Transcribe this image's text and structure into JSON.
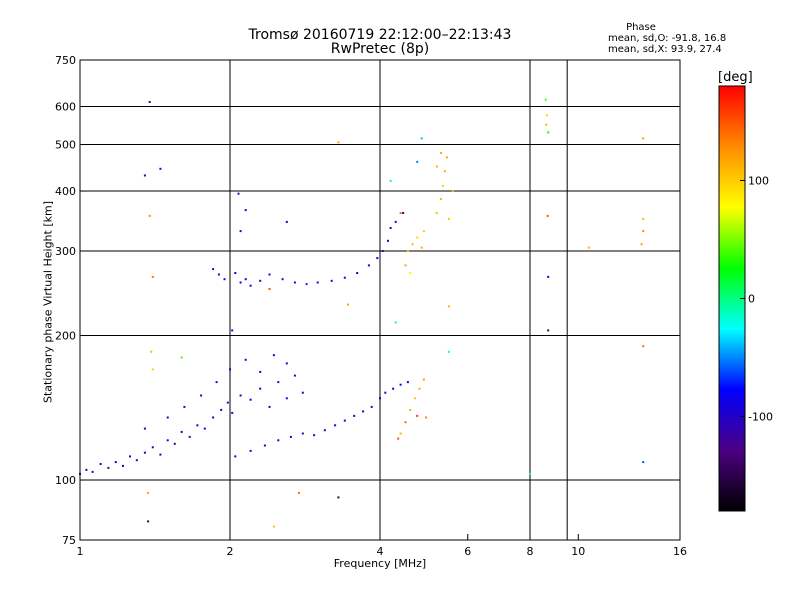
{
  "header": {
    "title_line1": "Tromsø 20160719 22:12:00–22:13:43",
    "title_line2": "RwPretec (8p)"
  },
  "phase_box": {
    "title": "Phase",
    "o_line": "mean, sd,O: -91.8, 16.8",
    "x_line": "mean, sd,X:  93.9, 27.4"
  },
  "colorbar": {
    "label": "[deg]",
    "range": [
      -180,
      180
    ],
    "ticks": [
      100,
      0,
      -100
    ],
    "colors": [
      "#000000",
      "#4b0082",
      "#0000ff",
      "#00ffff",
      "#00ff00",
      "#ffff00",
      "#ff8c00",
      "#ff0000"
    ]
  },
  "chart_data": {
    "type": "scatter",
    "xlabel": "Frequency [MHz]",
    "ylabel": "Stationary phase Virtual Height [km]",
    "x_scale": "log",
    "y_scale": "log",
    "xlim": [
      1,
      16
    ],
    "ylim": [
      75,
      750
    ],
    "x_ticks": [
      1,
      2,
      4,
      6,
      8,
      10,
      16
    ],
    "y_ticks": [
      75,
      100,
      200,
      300,
      400,
      500,
      600,
      750
    ],
    "x_grid": [
      1,
      2,
      4,
      8,
      9.5,
      16
    ],
    "y_grid": [
      100,
      200,
      300,
      400,
      500,
      600,
      750
    ],
    "grid": true,
    "point_fields": [
      "x_MHz",
      "height_km",
      "phase_deg"
    ],
    "series": [
      {
        "points": [
          [
            1.0,
            103,
            -100
          ],
          [
            1.03,
            105,
            -95
          ],
          [
            1.06,
            104,
            -105
          ],
          [
            1.1,
            108,
            -92
          ],
          [
            1.14,
            106,
            -110
          ],
          [
            1.18,
            109,
            -98
          ],
          [
            1.22,
            107,
            -102
          ],
          [
            1.26,
            112,
            -90
          ],
          [
            1.3,
            110,
            -104
          ],
          [
            1.35,
            114,
            -96
          ],
          [
            1.4,
            117,
            -112
          ],
          [
            1.45,
            113,
            -100
          ],
          [
            1.5,
            121,
            -94
          ],
          [
            1.55,
            119,
            -106
          ],
          [
            1.6,
            126,
            -92
          ],
          [
            1.66,
            123,
            -108
          ],
          [
            1.72,
            130,
            -98
          ],
          [
            1.78,
            128,
            -88
          ],
          [
            1.85,
            135,
            -102
          ],
          [
            1.92,
            140,
            -94
          ],
          [
            1.98,
            145,
            -110
          ],
          [
            2.02,
            138,
            -90
          ],
          [
            2.1,
            150,
            -100
          ],
          [
            2.2,
            147,
            -86
          ],
          [
            2.3,
            155,
            -104
          ],
          [
            2.4,
            142,
            -92
          ],
          [
            2.5,
            160,
            -98
          ],
          [
            2.6,
            148,
            -80
          ],
          [
            2.7,
            165,
            -106
          ],
          [
            2.8,
            152,
            -95
          ],
          [
            1.35,
            128,
            -100
          ],
          [
            1.5,
            135,
            -92
          ],
          [
            1.62,
            142,
            -104
          ],
          [
            1.75,
            150,
            -98
          ],
          [
            1.88,
            160,
            -110
          ],
          [
            2.0,
            170,
            -94
          ],
          [
            2.15,
            178,
            -102
          ],
          [
            2.3,
            168,
            -88
          ],
          [
            2.45,
            182,
            -100
          ],
          [
            2.6,
            175,
            -96
          ],
          [
            2.05,
            112,
            -104
          ],
          [
            2.2,
            115,
            -92
          ],
          [
            2.35,
            118,
            -98
          ],
          [
            2.5,
            121,
            -106
          ],
          [
            2.65,
            123,
            -90
          ],
          [
            2.8,
            125,
            -100
          ],
          [
            2.95,
            124,
            -94
          ],
          [
            3.1,
            127,
            -108
          ],
          [
            3.25,
            130,
            -98
          ],
          [
            3.4,
            133,
            -92
          ],
          [
            3.55,
            136,
            -104
          ],
          [
            3.7,
            139,
            -96
          ],
          [
            3.85,
            142,
            -110
          ],
          [
            4.0,
            148,
            -94
          ],
          [
            4.1,
            152,
            -102
          ],
          [
            4.25,
            155,
            -98
          ],
          [
            4.4,
            158,
            -90
          ],
          [
            4.55,
            160,
            -104
          ],
          [
            2.05,
            270,
            -100
          ],
          [
            2.1,
            258,
            -94
          ],
          [
            2.15,
            262,
            -104
          ],
          [
            2.2,
            254,
            -96
          ],
          [
            2.3,
            260,
            -110
          ],
          [
            2.4,
            268,
            -92
          ],
          [
            2.55,
            262,
            -100
          ],
          [
            2.7,
            258,
            -75
          ],
          [
            2.85,
            256,
            -70
          ],
          [
            3.0,
            258,
            -98
          ],
          [
            3.2,
            260,
            -102
          ],
          [
            3.4,
            264,
            -96
          ],
          [
            3.6,
            270,
            -104
          ],
          [
            3.8,
            280,
            -98
          ],
          [
            3.95,
            290,
            -92
          ],
          [
            4.05,
            300,
            -100
          ],
          [
            4.15,
            315,
            -96
          ],
          [
            1.85,
            275,
            -98
          ],
          [
            1.9,
            268,
            -104
          ],
          [
            1.95,
            262,
            -92
          ],
          [
            2.02,
            205,
            -100
          ],
          [
            2.1,
            330,
            -96
          ],
          [
            2.08,
            395,
            -104
          ],
          [
            2.15,
            365,
            -94
          ],
          [
            2.6,
            345,
            -100
          ],
          [
            4.2,
            335,
            -92
          ],
          [
            4.3,
            345,
            -104
          ],
          [
            4.45,
            360,
            -98
          ],
          [
            4.2,
            420,
            -30
          ],
          [
            4.75,
            460,
            -50
          ],
          [
            4.85,
            515,
            -40
          ],
          [
            4.3,
            213,
            -10
          ],
          [
            5.5,
            185,
            -20
          ],
          [
            8.0,
            103,
            -10
          ],
          [
            8.7,
            205,
            -140
          ],
          [
            8.7,
            265,
            -90
          ],
          [
            13.5,
            109,
            -60
          ],
          [
            3.3,
            92,
            -150
          ],
          [
            1.37,
            82,
            -140
          ],
          [
            1.38,
            613,
            -110
          ],
          [
            1.35,
            431,
            -100
          ],
          [
            1.45,
            445,
            -96
          ]
        ]
      },
      {
        "points": [
          [
            4.55,
            300,
            100
          ],
          [
            4.65,
            310,
            110
          ],
          [
            4.75,
            320,
            96
          ],
          [
            4.85,
            305,
            115
          ],
          [
            4.9,
            330,
            100
          ],
          [
            4.6,
            270,
            80
          ],
          [
            5.2,
            360,
            105
          ],
          [
            5.3,
            385,
            110
          ],
          [
            5.35,
            410,
            98
          ],
          [
            5.4,
            440,
            115
          ],
          [
            5.45,
            470,
            120
          ],
          [
            5.5,
            350,
            100
          ],
          [
            5.6,
            400,
            108
          ],
          [
            5.2,
            450,
            112
          ],
          [
            5.3,
            480,
            118
          ],
          [
            4.4,
            360,
            140
          ],
          [
            4.5,
            280,
            120
          ],
          [
            5.5,
            230,
            110
          ],
          [
            4.6,
            140,
            110
          ],
          [
            4.7,
            148,
            100
          ],
          [
            4.8,
            155,
            115
          ],
          [
            4.9,
            162,
            120
          ],
          [
            4.5,
            132,
            140
          ],
          [
            4.75,
            136,
            160
          ],
          [
            4.95,
            135,
            130
          ],
          [
            4.4,
            125,
            110
          ],
          [
            4.35,
            122,
            150
          ],
          [
            8.6,
            620,
            40
          ],
          [
            8.65,
            575,
            95
          ],
          [
            8.62,
            550,
            110
          ],
          [
            8.7,
            530,
            30
          ],
          [
            8.68,
            355,
            150
          ],
          [
            10.5,
            305,
            110
          ],
          [
            13.5,
            515,
            120
          ],
          [
            13.5,
            350,
            110
          ],
          [
            13.5,
            330,
            130
          ],
          [
            13.4,
            310,
            120
          ],
          [
            13.5,
            190,
            140
          ],
          [
            1.38,
            355,
            125
          ],
          [
            1.4,
            265,
            135
          ],
          [
            1.39,
            185,
            110
          ],
          [
            1.4,
            170,
            100
          ],
          [
            1.37,
            94,
            120
          ],
          [
            2.45,
            80,
            105
          ],
          [
            2.75,
            94,
            140
          ],
          [
            3.45,
            232,
            120
          ],
          [
            3.3,
            505,
            115
          ],
          [
            2.4,
            250,
            150
          ],
          [
            1.6,
            180,
            40
          ]
        ]
      }
    ]
  }
}
